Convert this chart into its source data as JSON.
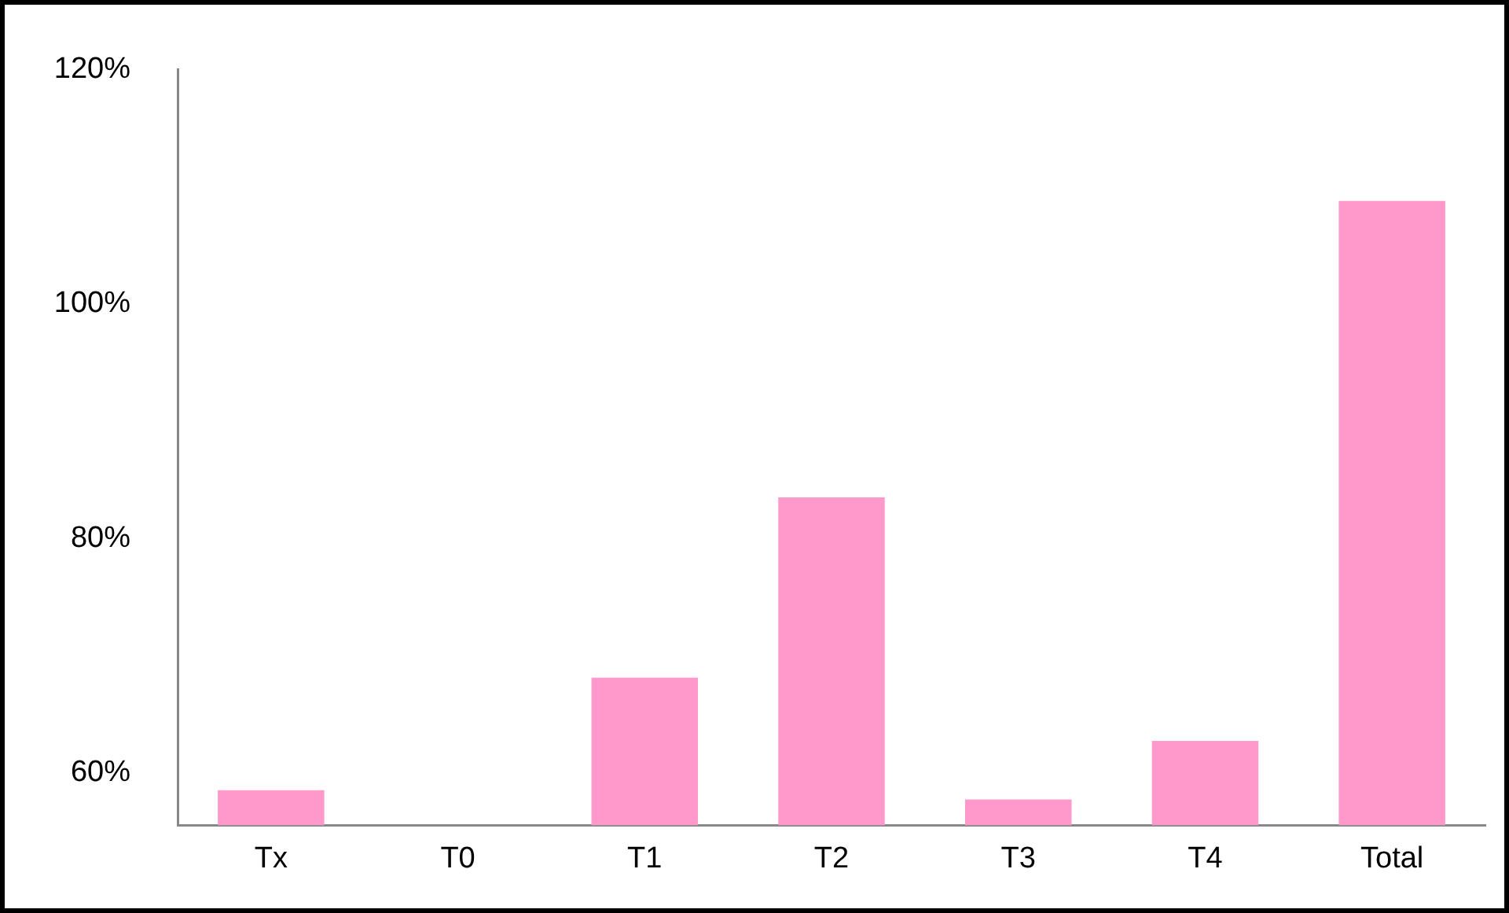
{
  "chart_data": {
    "type": "bar",
    "categories": [
      "Tx",
      "T0",
      "T1",
      "T2",
      "T3",
      "T4",
      "Total"
    ],
    "values": [
      58.5,
      55.5,
      68.1,
      83.5,
      57.7,
      62.7,
      108.8
    ],
    "color": "#ff99cc",
    "ylim": [
      55.5,
      120
    ],
    "yticks": [
      {
        "value": 60,
        "label": "60%"
      },
      {
        "value": 80,
        "label": "80%"
      },
      {
        "value": 100,
        "label": "100%"
      },
      {
        "value": 120,
        "label": "120%"
      }
    ],
    "grid": false,
    "legend": false
  }
}
